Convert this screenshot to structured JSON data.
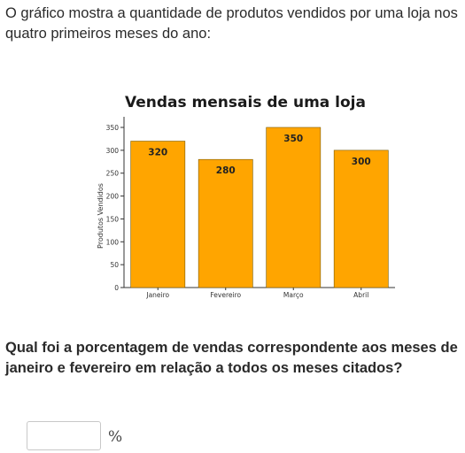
{
  "intro_text": "O gráfico mostra a quantidade de produtos vendidos por uma loja nos quatro primeiros meses do ano:",
  "question_text": "Qual foi a porcentagem de vendas correspondente aos meses de janeiro e fevereiro em relação a todos os meses citados?",
  "answer": {
    "value": "",
    "unit": "%"
  },
  "colors": {
    "bar": "#FFA500",
    "bar_stroke": "#7a5a00",
    "axis": "#333333"
  },
  "chart_data": {
    "type": "bar",
    "title": "Vendas mensais de uma loja",
    "xlabel": "",
    "ylabel": "Produtos Vendidos",
    "categories": [
      "Janeiro",
      "Fevereiro",
      "Março",
      "Abril"
    ],
    "values": [
      320,
      280,
      350,
      300
    ],
    "data_labels": [
      "320",
      "280",
      "350",
      "300"
    ],
    "ylim": [
      0,
      350
    ],
    "yticks": [
      0,
      50,
      100,
      150,
      200,
      250,
      300,
      350
    ],
    "grid": false
  }
}
